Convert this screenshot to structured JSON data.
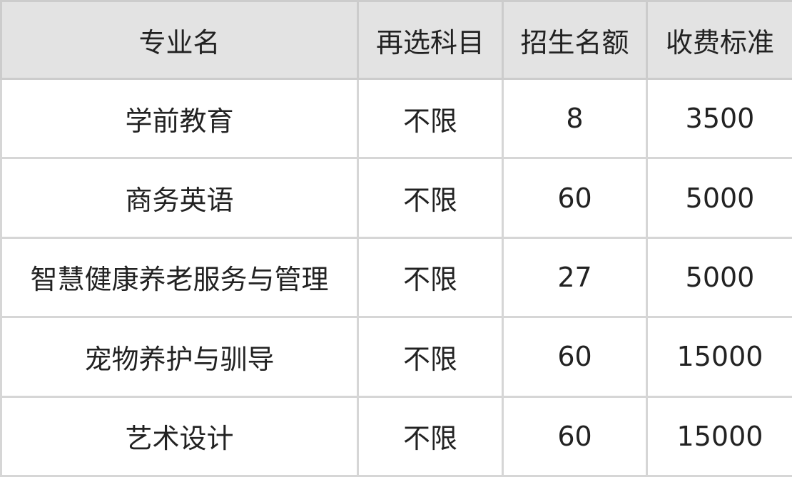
{
  "headers": [
    "专业名",
    "再选科目",
    "招生名额",
    "收费标准"
  ],
  "rows": [
    [
      "学前教育",
      "不限",
      "8",
      "3500"
    ],
    [
      "商务英语",
      "不限",
      "60",
      "5000"
    ],
    [
      "智慧健康养老服务与管理",
      "不限",
      "27",
      "5000"
    ],
    [
      "宠物养护与驯导",
      "不限",
      "60",
      "15000"
    ],
    [
      "艺术设计",
      "不限",
      "60",
      "15000"
    ]
  ]
}
